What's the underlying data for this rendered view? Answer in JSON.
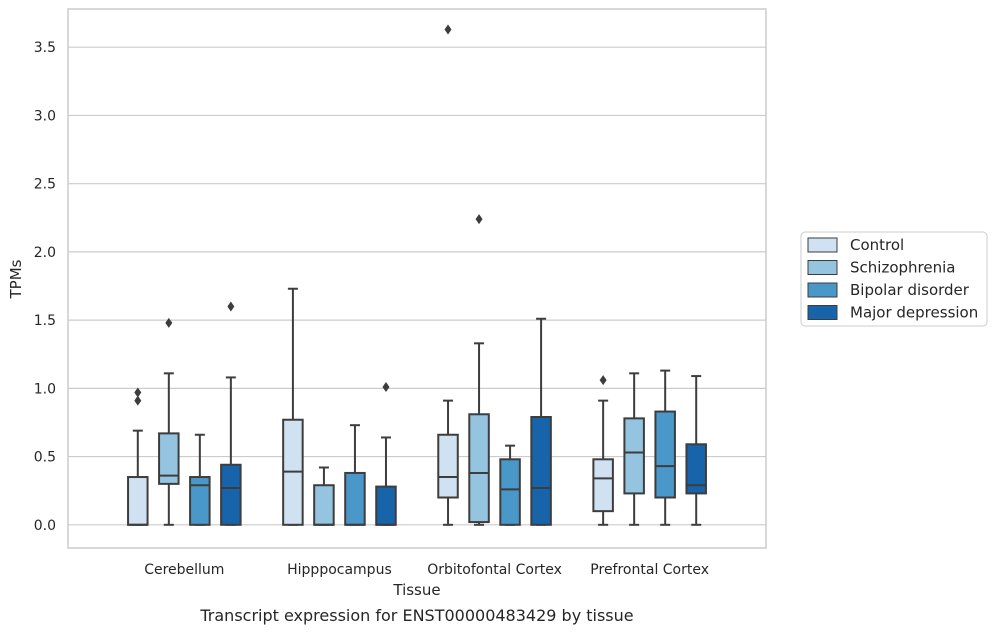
{
  "chart_data": {
    "type": "box",
    "title": "",
    "caption": "Transcript expression for ENST00000483429 by tissue",
    "xlabel": "Tissue",
    "ylabel": "TPMs",
    "ylim": [
      -0.17,
      3.78
    ],
    "yticks": [
      "0.0",
      "0.5",
      "1.0",
      "1.5",
      "2.0",
      "2.5",
      "3.0",
      "3.5"
    ],
    "ytick_values": [
      0,
      0.5,
      1.0,
      1.5,
      2.0,
      2.5,
      3.0,
      3.5
    ],
    "grid": true,
    "legend_position": "right",
    "categories": [
      "Cerebellum",
      "Hipppocampus",
      "Orbitofontal Cortex",
      "Prefrontal Cortex"
    ],
    "series": [
      {
        "name": "Control",
        "color": "#d0e1f2",
        "boxes": [
          {
            "whislo": 0.0,
            "q1": 0.0,
            "med": 0.0,
            "q3": 0.35,
            "whishi": 0.69,
            "fliers": [
              0.91,
              0.97
            ]
          },
          {
            "whislo": 0.0,
            "q1": 0.0,
            "med": 0.39,
            "q3": 0.77,
            "whishi": 1.73,
            "fliers": []
          },
          {
            "whislo": 0.0,
            "q1": 0.2,
            "med": 0.35,
            "q3": 0.66,
            "whishi": 0.91,
            "fliers": [
              3.63
            ]
          },
          {
            "whislo": 0.0,
            "q1": 0.1,
            "med": 0.34,
            "q3": 0.48,
            "whishi": 0.91,
            "fliers": [
              1.06
            ]
          }
        ]
      },
      {
        "name": "Schizophrenia",
        "color": "#94c4df",
        "boxes": [
          {
            "whislo": 0.0,
            "q1": 0.3,
            "med": 0.36,
            "q3": 0.67,
            "whishi": 1.11,
            "fliers": [
              1.48
            ]
          },
          {
            "whislo": 0.0,
            "q1": 0.0,
            "med": 0.0,
            "q3": 0.29,
            "whishi": 0.42,
            "fliers": []
          },
          {
            "whislo": 0.0,
            "q1": 0.02,
            "med": 0.38,
            "q3": 0.81,
            "whishi": 1.33,
            "fliers": [
              2.24
            ]
          },
          {
            "whislo": 0.0,
            "q1": 0.23,
            "med": 0.53,
            "q3": 0.78,
            "whishi": 1.11,
            "fliers": []
          }
        ]
      },
      {
        "name": "Bipolar disorder",
        "color": "#4a98c9",
        "boxes": [
          {
            "whislo": 0.0,
            "q1": 0.0,
            "med": 0.29,
            "q3": 0.35,
            "whishi": 0.66,
            "fliers": []
          },
          {
            "whislo": 0.0,
            "q1": 0.0,
            "med": 0.0,
            "q3": 0.38,
            "whishi": 0.73,
            "fliers": []
          },
          {
            "whislo": 0.0,
            "q1": 0.0,
            "med": 0.26,
            "q3": 0.48,
            "whishi": 0.58,
            "fliers": []
          },
          {
            "whislo": 0.0,
            "q1": 0.2,
            "med": 0.43,
            "q3": 0.83,
            "whishi": 1.13,
            "fliers": []
          }
        ]
      },
      {
        "name": "Major depression",
        "color": "#1764ab",
        "boxes": [
          {
            "whislo": 0.0,
            "q1": 0.0,
            "med": 0.27,
            "q3": 0.44,
            "whishi": 1.08,
            "fliers": [
              1.6
            ]
          },
          {
            "whislo": 0.0,
            "q1": 0.0,
            "med": 0.0,
            "q3": 0.28,
            "whishi": 0.64,
            "fliers": [
              1.01
            ]
          },
          {
            "whislo": 0.0,
            "q1": 0.0,
            "med": 0.27,
            "q3": 0.79,
            "whishi": 1.51,
            "fliers": []
          },
          {
            "whislo": 0.0,
            "q1": 0.23,
            "med": 0.29,
            "q3": 0.59,
            "whishi": 1.09,
            "fliers": []
          }
        ]
      }
    ]
  }
}
